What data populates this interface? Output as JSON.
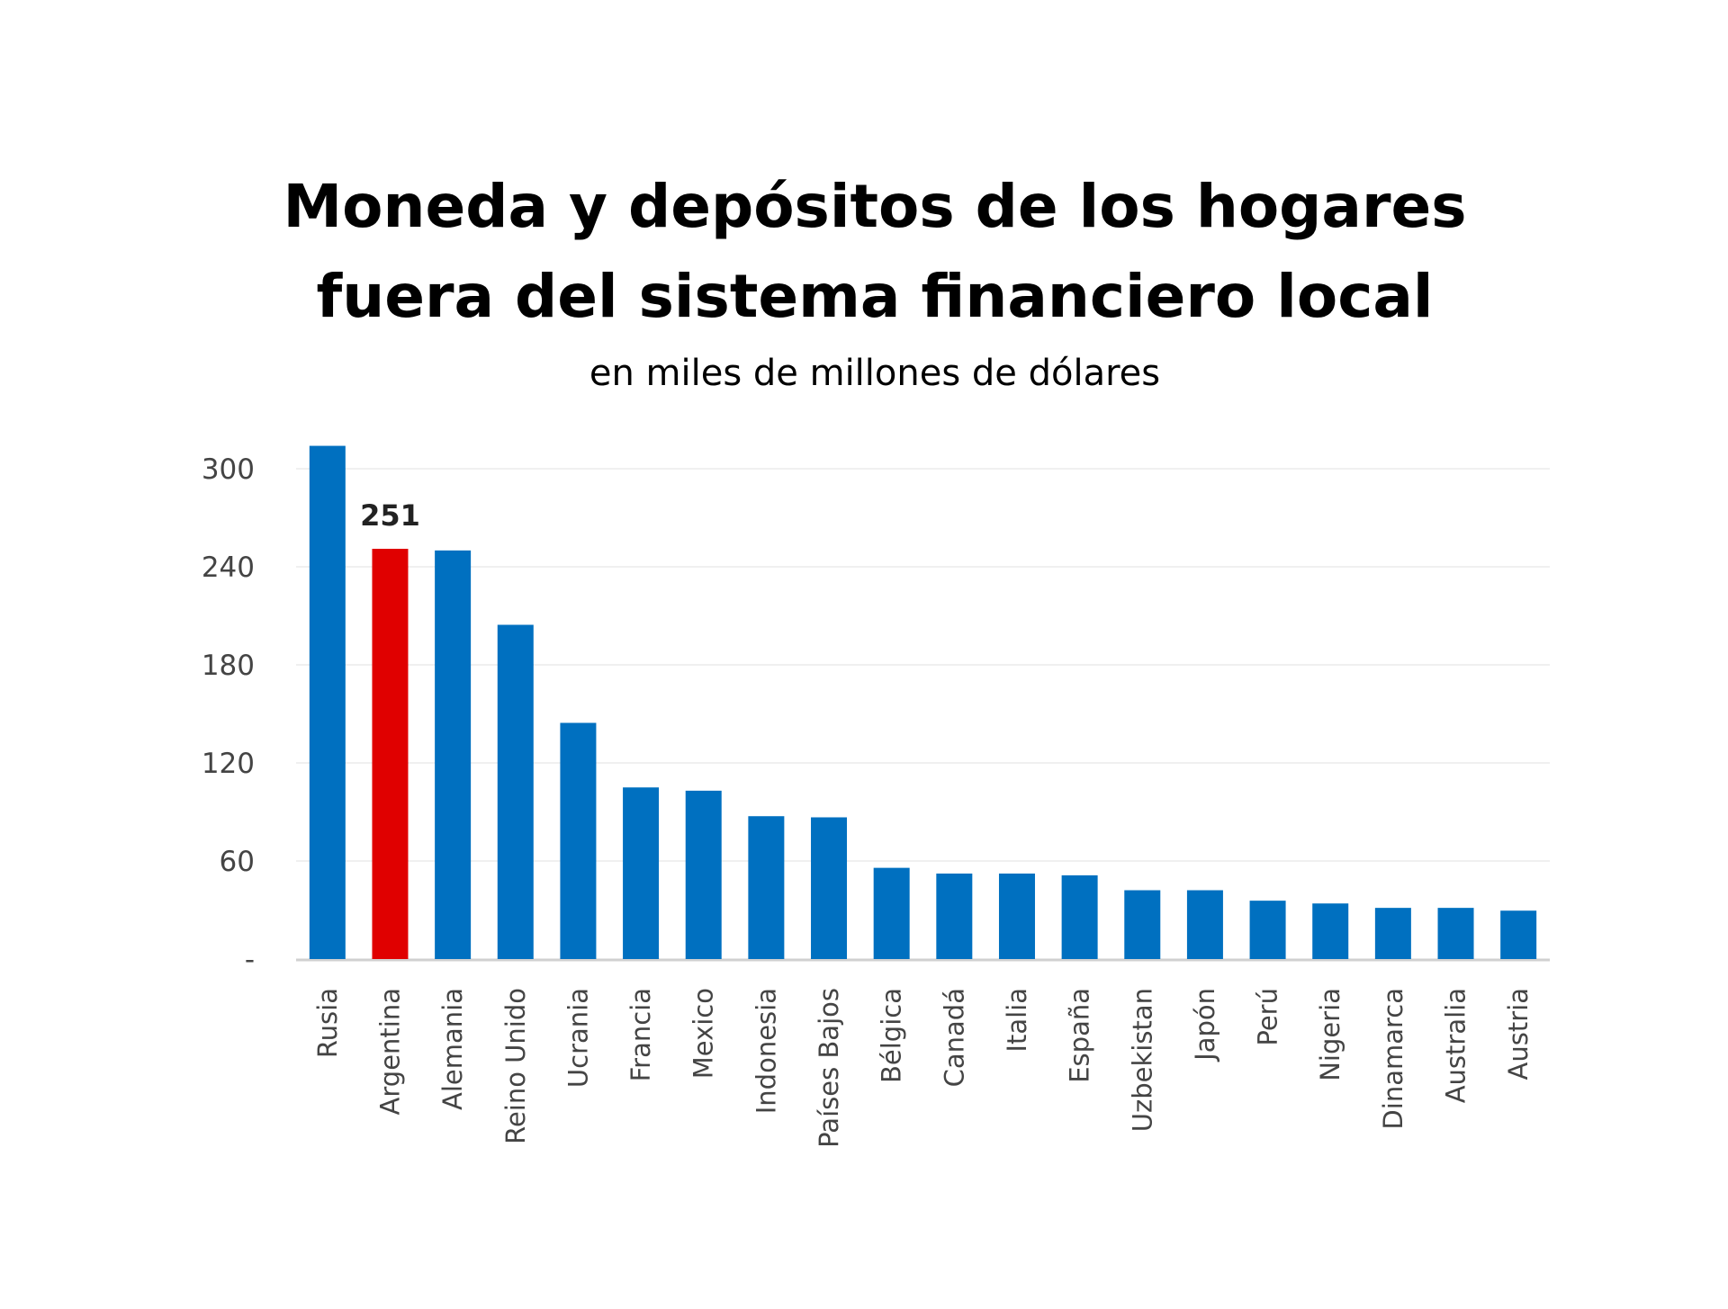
{
  "chart_data": {
    "type": "bar",
    "title_lines": [
      "Moneda y depósitos de los hogares",
      "fuera del sistema financiero local"
    ],
    "subtitle": "en miles de millones de dólares",
    "xlabel": "",
    "ylabel": "",
    "ylim": [
      0,
      314
    ],
    "yticks": [
      0,
      60,
      120,
      180,
      240,
      300
    ],
    "ytick_labels": [
      "-",
      "60",
      "120",
      "180",
      "240",
      "300"
    ],
    "grid": true,
    "categories": [
      "Rusia",
      "Argentina",
      "Alemania",
      "Reino Unido",
      "Ucrania",
      "Francia",
      "Mexico",
      "Indonesia",
      "Países Bajos",
      "Bélgica",
      "Canadá",
      "Italia",
      "España",
      "Uzbekistan",
      "Japón",
      "Perú",
      "Nigeria",
      "Dinamarca",
      "Australia",
      "Austria"
    ],
    "values": [
      314,
      251,
      250,
      204.5,
      144.5,
      105,
      103,
      87.4,
      86.7,
      55.8,
      52.3,
      52.3,
      51.2,
      42.1,
      42.1,
      35.7,
      34,
      31.3,
      31.3,
      29.6
    ],
    "highlight": {
      "category": "Argentina",
      "label": "251"
    },
    "colors": {
      "bar": "#0070C0",
      "highlight": "#E00000",
      "grid": "#F0F0F0",
      "axis": "#D0D0D0"
    }
  }
}
